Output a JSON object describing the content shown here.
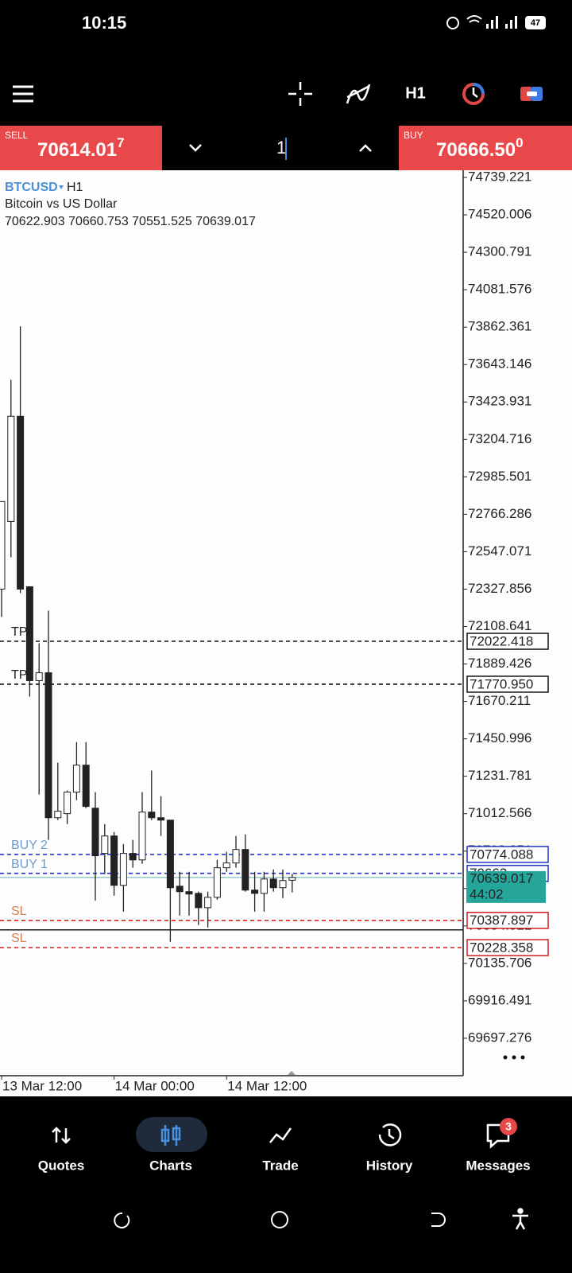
{
  "status_bar": {
    "time": "10:15",
    "battery": "47"
  },
  "toolbar": {
    "timeframe": "H1"
  },
  "trade_panel": {
    "sell": {
      "label": "SELL",
      "price": "70614.01",
      "last_digit": "7"
    },
    "volume": "1",
    "buy": {
      "label": "BUY",
      "price": "70666.50",
      "last_digit": "0"
    }
  },
  "chart_data": {
    "type": "candlestick",
    "symbol": "BTCUSD",
    "timeframe": "H1",
    "description": "Bitcoin vs US Dollar",
    "ohlc": "70622.903 70660.753 70551.525 70639.017",
    "categories": [
      "13 Mar 12:00",
      null,
      null,
      null,
      null,
      null,
      null,
      null,
      null,
      null,
      null,
      null,
      "14 Mar 00:00",
      null,
      null,
      null,
      null,
      null,
      null,
      null,
      null,
      null,
      null,
      null,
      "14 Mar 12:00",
      null,
      null,
      null,
      null,
      null,
      null,
      null
    ],
    "open": [
      72328,
      72724,
      73340,
      72342,
      71792,
      71838,
      70989,
      71013,
      71139,
      71297,
      71045,
      70780,
      70882,
      70593,
      70780,
      70742,
      71022,
      70989,
      70975,
      70588,
      70556,
      70546,
      70462,
      70523,
      70696,
      70724,
      70803,
      70565,
      70546,
      70630,
      70579,
      70622.903
    ],
    "high": [
      72841,
      73554,
      73867,
      72342,
      72011,
      72202,
      71311,
      71148,
      71432,
      71432,
      71139,
      70952,
      70905,
      70835,
      70859,
      71139,
      71265,
      71115,
      70975,
      70672,
      70672,
      70556,
      70556,
      70742,
      70789,
      70882,
      70891,
      70672,
      70672,
      70686,
      70686,
      70660.753
    ],
    "low": [
      72165,
      72514,
      72305,
      71698,
      71125,
      70859,
      70975,
      70952,
      71092,
      71045,
      70504,
      70658,
      70532,
      70439,
      70696,
      70719,
      70975,
      70882,
      70262,
      70416,
      70416,
      70360,
      70346,
      70509,
      70672,
      70696,
      70556,
      70439,
      70439,
      70556,
      70518,
      70551.525
    ],
    "close": [
      72841,
      73340,
      72328,
      71792,
      71838,
      70989,
      71027,
      71139,
      71297,
      71055,
      70766,
      70882,
      70593,
      70780,
      70742,
      71022,
      70989,
      70975,
      70579,
      70556,
      70542,
      70462,
      70523,
      70696,
      70724,
      70803,
      70565,
      70546,
      70630,
      70579,
      70621,
      70639.017
    ],
    "up_color": "#ffffff",
    "down_color": "#222222",
    "ylim": [
      69478.1,
      74776.5
    ],
    "yticks": [
      74739.221,
      74520.006,
      74300.791,
      74081.576,
      73862.361,
      73643.146,
      73423.931,
      73204.716,
      72985.501,
      72766.286,
      72547.071,
      72327.856,
      72108.641,
      71889.426,
      71670.211,
      71450.996,
      71231.781,
      71012.566,
      70793.351,
      70574.136,
      70354.921,
      70135.706,
      69916.491,
      69697.276
    ],
    "levels": [
      {
        "label": "TP",
        "value": 72022.418,
        "color": "#111111",
        "label_color": "#222222",
        "style": "dashed"
      },
      {
        "label": "TP",
        "value": 71770.95,
        "value_label": "71770.950",
        "color": "#111111",
        "label_color": "#222222",
        "style": "dashed"
      },
      {
        "label": "BUY 2",
        "value": 70774.088,
        "color": "#2233cc",
        "label_color": "#6b9bd1",
        "style": "dashed"
      },
      {
        "label": "BUY 1",
        "value": 70663,
        "color": "#2233cc",
        "label_color": "#6b9bd1",
        "style": "dashed"
      },
      {
        "value": 70332,
        "color": "#111111",
        "style": "solid"
      },
      {
        "label": "SL",
        "value": 70387.897,
        "color": "#d42020",
        "label_color": "#d08050",
        "style": "dashed"
      },
      {
        "label": "SL",
        "value": 70228.358,
        "color": "#d42020",
        "label_color": "#d08050",
        "style": "dashed"
      }
    ],
    "current_price": {
      "value": 70639.017,
      "timer": "44:02",
      "color": "#26a69a"
    }
  },
  "nav": {
    "tabs": [
      {
        "label": "Quotes"
      },
      {
        "label": "Charts",
        "active": true
      },
      {
        "label": "Trade"
      },
      {
        "label": "History"
      },
      {
        "label": "Messages",
        "badge": "3"
      }
    ]
  }
}
